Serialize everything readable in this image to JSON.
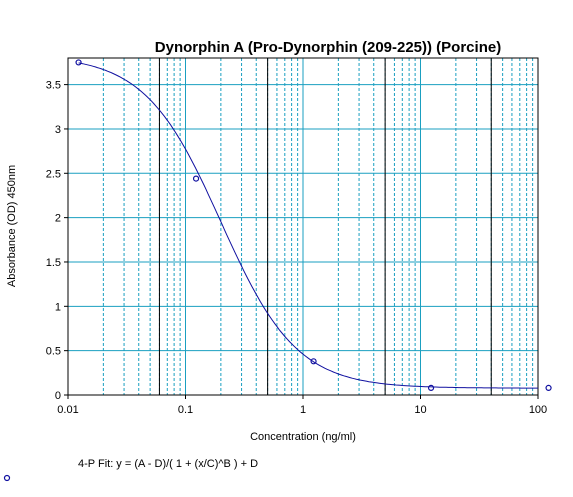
{
  "chart_data": {
    "type": "scatter",
    "title": "Dynorphin A (Pro-Dynorphin (209-225)) (Porcine)",
    "xlabel": "Concentration (ng/ml)",
    "ylabel": "Absorbance (OD) 450nm",
    "x_scale": "log",
    "xlim": [
      0.01,
      100
    ],
    "ylim": [
      0,
      3.8
    ],
    "x_ticks": [
      {
        "value": 0.01,
        "label": "0.01"
      },
      {
        "value": 0.1,
        "label": "0.1"
      },
      {
        "value": 1,
        "label": "1"
      },
      {
        "value": 10,
        "label": "10"
      },
      {
        "value": 100,
        "label": "100"
      }
    ],
    "y_ticks": [
      {
        "value": 0,
        "label": "0"
      },
      {
        "value": 0.5,
        "label": "0.5"
      },
      {
        "value": 1,
        "label": "1"
      },
      {
        "value": 1.5,
        "label": "1.5"
      },
      {
        "value": 2,
        "label": "2"
      },
      {
        "value": 2.5,
        "label": "2.5"
      },
      {
        "value": 3,
        "label": "3"
      },
      {
        "value": 3.5,
        "label": "3.5"
      }
    ],
    "grid": true,
    "vertical_markers": [
      0.06,
      0.5,
      5,
      40
    ],
    "points": [
      {
        "x": 0.0123,
        "y": 3.75
      },
      {
        "x": 0.123,
        "y": 2.44
      },
      {
        "x": 1.23,
        "y": 0.38
      },
      {
        "x": 12.3,
        "y": 0.08
      },
      {
        "x": 123,
        "y": 0.08
      }
    ],
    "fit": {
      "A": 3.83,
      "B": 1.35,
      "C": 0.2,
      "D": 0.077,
      "x_range": [
        0.0123,
        100
      ]
    },
    "fit_equation": "4-P Fit: y = (A - D)/( 1 + (x/C)^B ) + D",
    "colors": {
      "grid": "#1a9fc0",
      "curve": "#1010a0",
      "points": "#1010a0",
      "markers": "#000000"
    }
  }
}
